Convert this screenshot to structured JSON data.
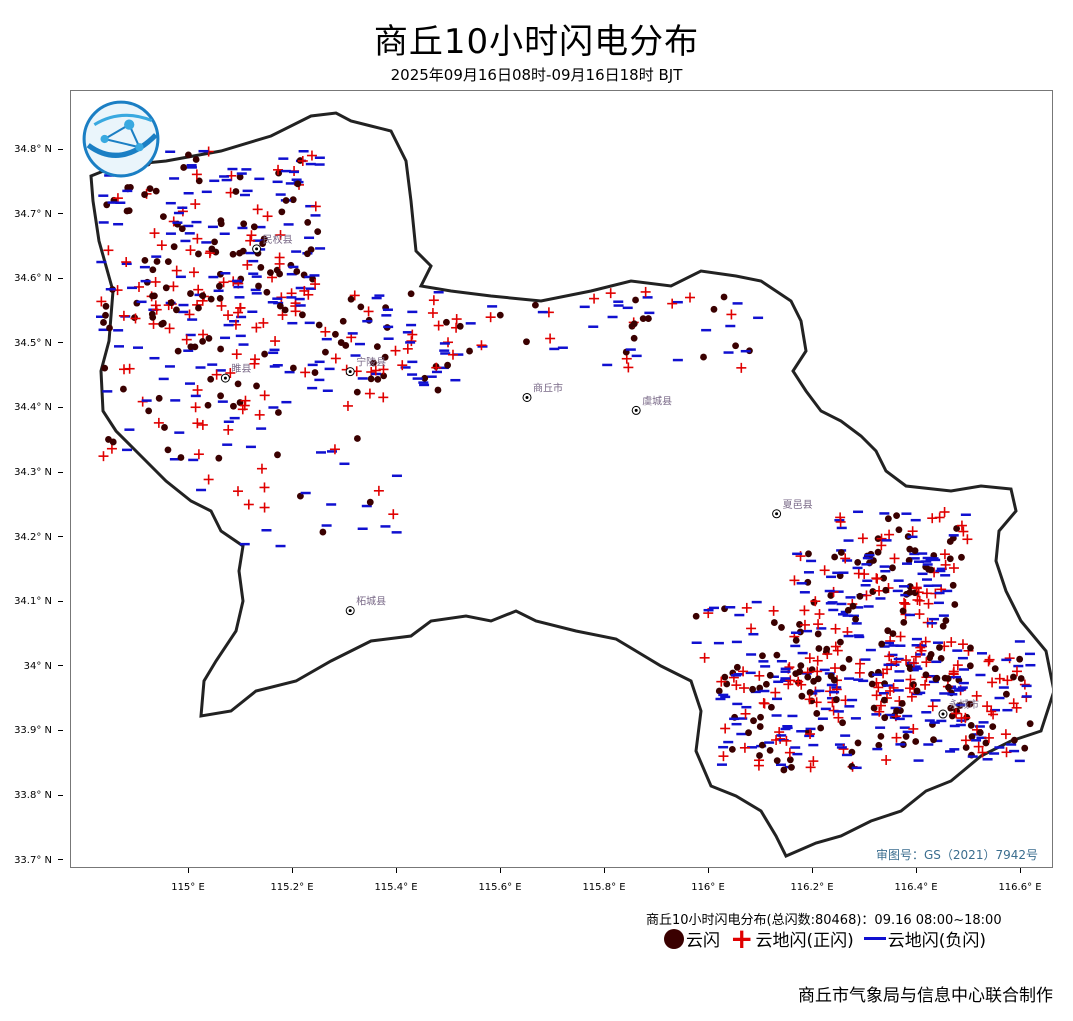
{
  "header": {
    "title": "商丘10小时闪电分布",
    "subtitle": "2025年09月16日08时-09月16日18时 BJT"
  },
  "map": {
    "lat_ticks": [
      "34.8° N",
      "34.7° N",
      "34.6° N",
      "34.5° N",
      "34.4° N",
      "34.3° N",
      "34.2° N",
      "34.1° N",
      "34° N",
      "33.9° N",
      "33.8° N",
      "33.7° N"
    ],
    "lon_ticks": [
      "115° E",
      "115.2° E",
      "115.4° E",
      "115.6° E",
      "115.8° E",
      "116° E",
      "116.2° E",
      "116.4° E",
      "116.6° E"
    ],
    "cities": [
      {
        "name": "民权县",
        "lon": 115.13,
        "lat": 34.65
      },
      {
        "name": "睢县",
        "lon": 115.07,
        "lat": 34.45
      },
      {
        "name": "宁陵县",
        "lon": 115.31,
        "lat": 34.46
      },
      {
        "name": "商丘市",
        "lon": 115.65,
        "lat": 34.42
      },
      {
        "name": "虞城县",
        "lon": 115.86,
        "lat": 34.4
      },
      {
        "name": "夏邑县",
        "lon": 116.13,
        "lat": 34.24
      },
      {
        "name": "柘城县",
        "lon": 115.31,
        "lat": 34.09
      },
      {
        "name": "永城市",
        "lon": 116.45,
        "lat": 33.93
      }
    ],
    "approval": "审图号：GS（2021）7942号",
    "colors": {
      "cloud": "#3a0000",
      "positive": "#e00000",
      "negative": "#1010d0",
      "border": "#222222"
    }
  },
  "summary": "商丘10小时闪电分布(总闪数:80468)：09.16 08:00~18:00",
  "legend": {
    "cloud": "云闪",
    "positive": "云地闪(正闪)",
    "negative": "云地闪(负闪)"
  },
  "credit": "商丘市气象局与信息中心联合制作"
}
